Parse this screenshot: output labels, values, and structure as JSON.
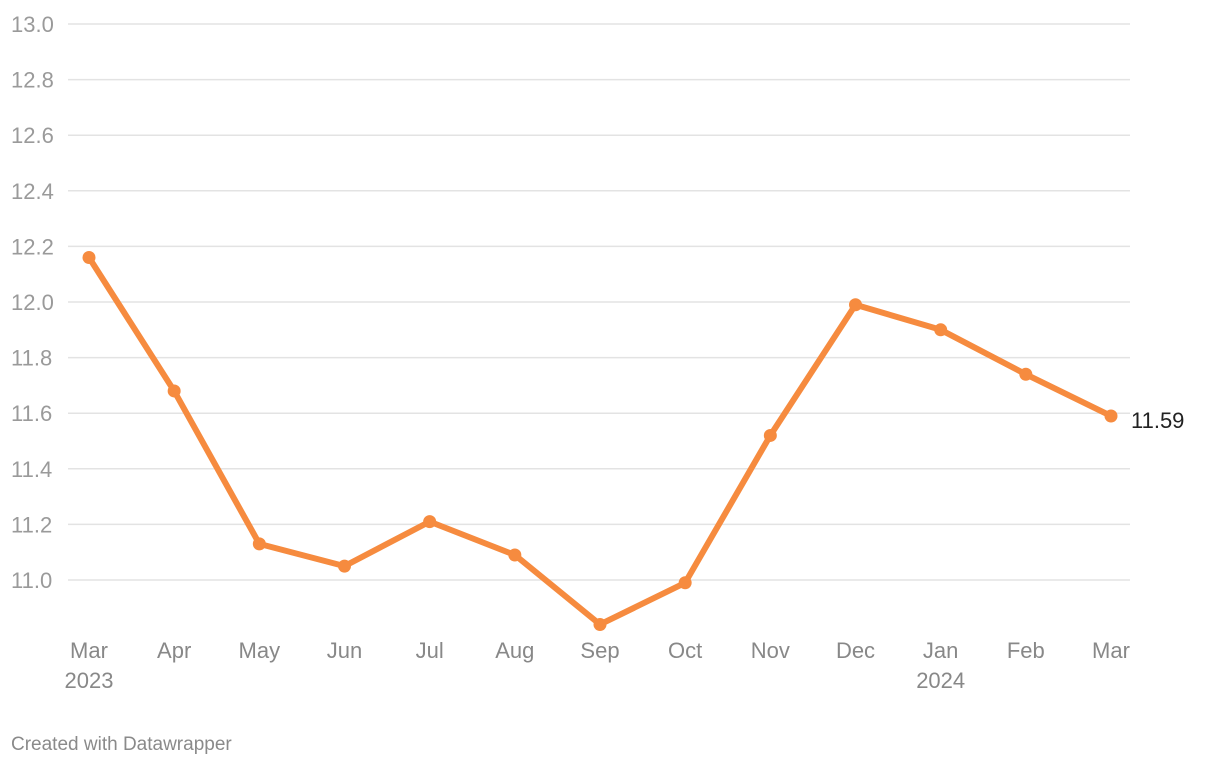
{
  "chart_data": {
    "type": "line",
    "x": [
      "Mar 2023",
      "Apr 2023",
      "May 2023",
      "Jun 2023",
      "Jul 2023",
      "Aug 2023",
      "Sep 2023",
      "Oct 2023",
      "Nov 2023",
      "Dec 2023",
      "Jan 2024",
      "Feb 2024",
      "Mar 2024"
    ],
    "x_tick_labels": [
      {
        "month": "Mar",
        "year": "2023"
      },
      {
        "month": "Apr",
        "year": ""
      },
      {
        "month": "May",
        "year": ""
      },
      {
        "month": "Jun",
        "year": ""
      },
      {
        "month": "Jul",
        "year": ""
      },
      {
        "month": "Aug",
        "year": ""
      },
      {
        "month": "Sep",
        "year": ""
      },
      {
        "month": "Oct",
        "year": ""
      },
      {
        "month": "Nov",
        "year": ""
      },
      {
        "month": "Dec",
        "year": ""
      },
      {
        "month": "Jan",
        "year": "2024"
      },
      {
        "month": "Feb",
        "year": ""
      },
      {
        "month": "Mar",
        "year": ""
      }
    ],
    "series": [
      {
        "values": [
          12.16,
          11.68,
          11.13,
          11.05,
          11.21,
          11.09,
          10.84,
          10.99,
          11.52,
          11.99,
          11.9,
          11.74,
          11.59
        ]
      }
    ],
    "ylim": [
      10.84,
      13.0
    ],
    "y_ticks": [
      "11.0",
      "11.2",
      "11.4",
      "11.6",
      "11.8",
      "12.0",
      "12.2",
      "12.4",
      "12.6",
      "12.8",
      "13.0"
    ],
    "end_label": "11.59",
    "line_color": "#f68b3f",
    "grid": true,
    "title": "",
    "xlabel": "",
    "ylabel": ""
  },
  "footer": {
    "credit": "Created with Datawrapper"
  }
}
